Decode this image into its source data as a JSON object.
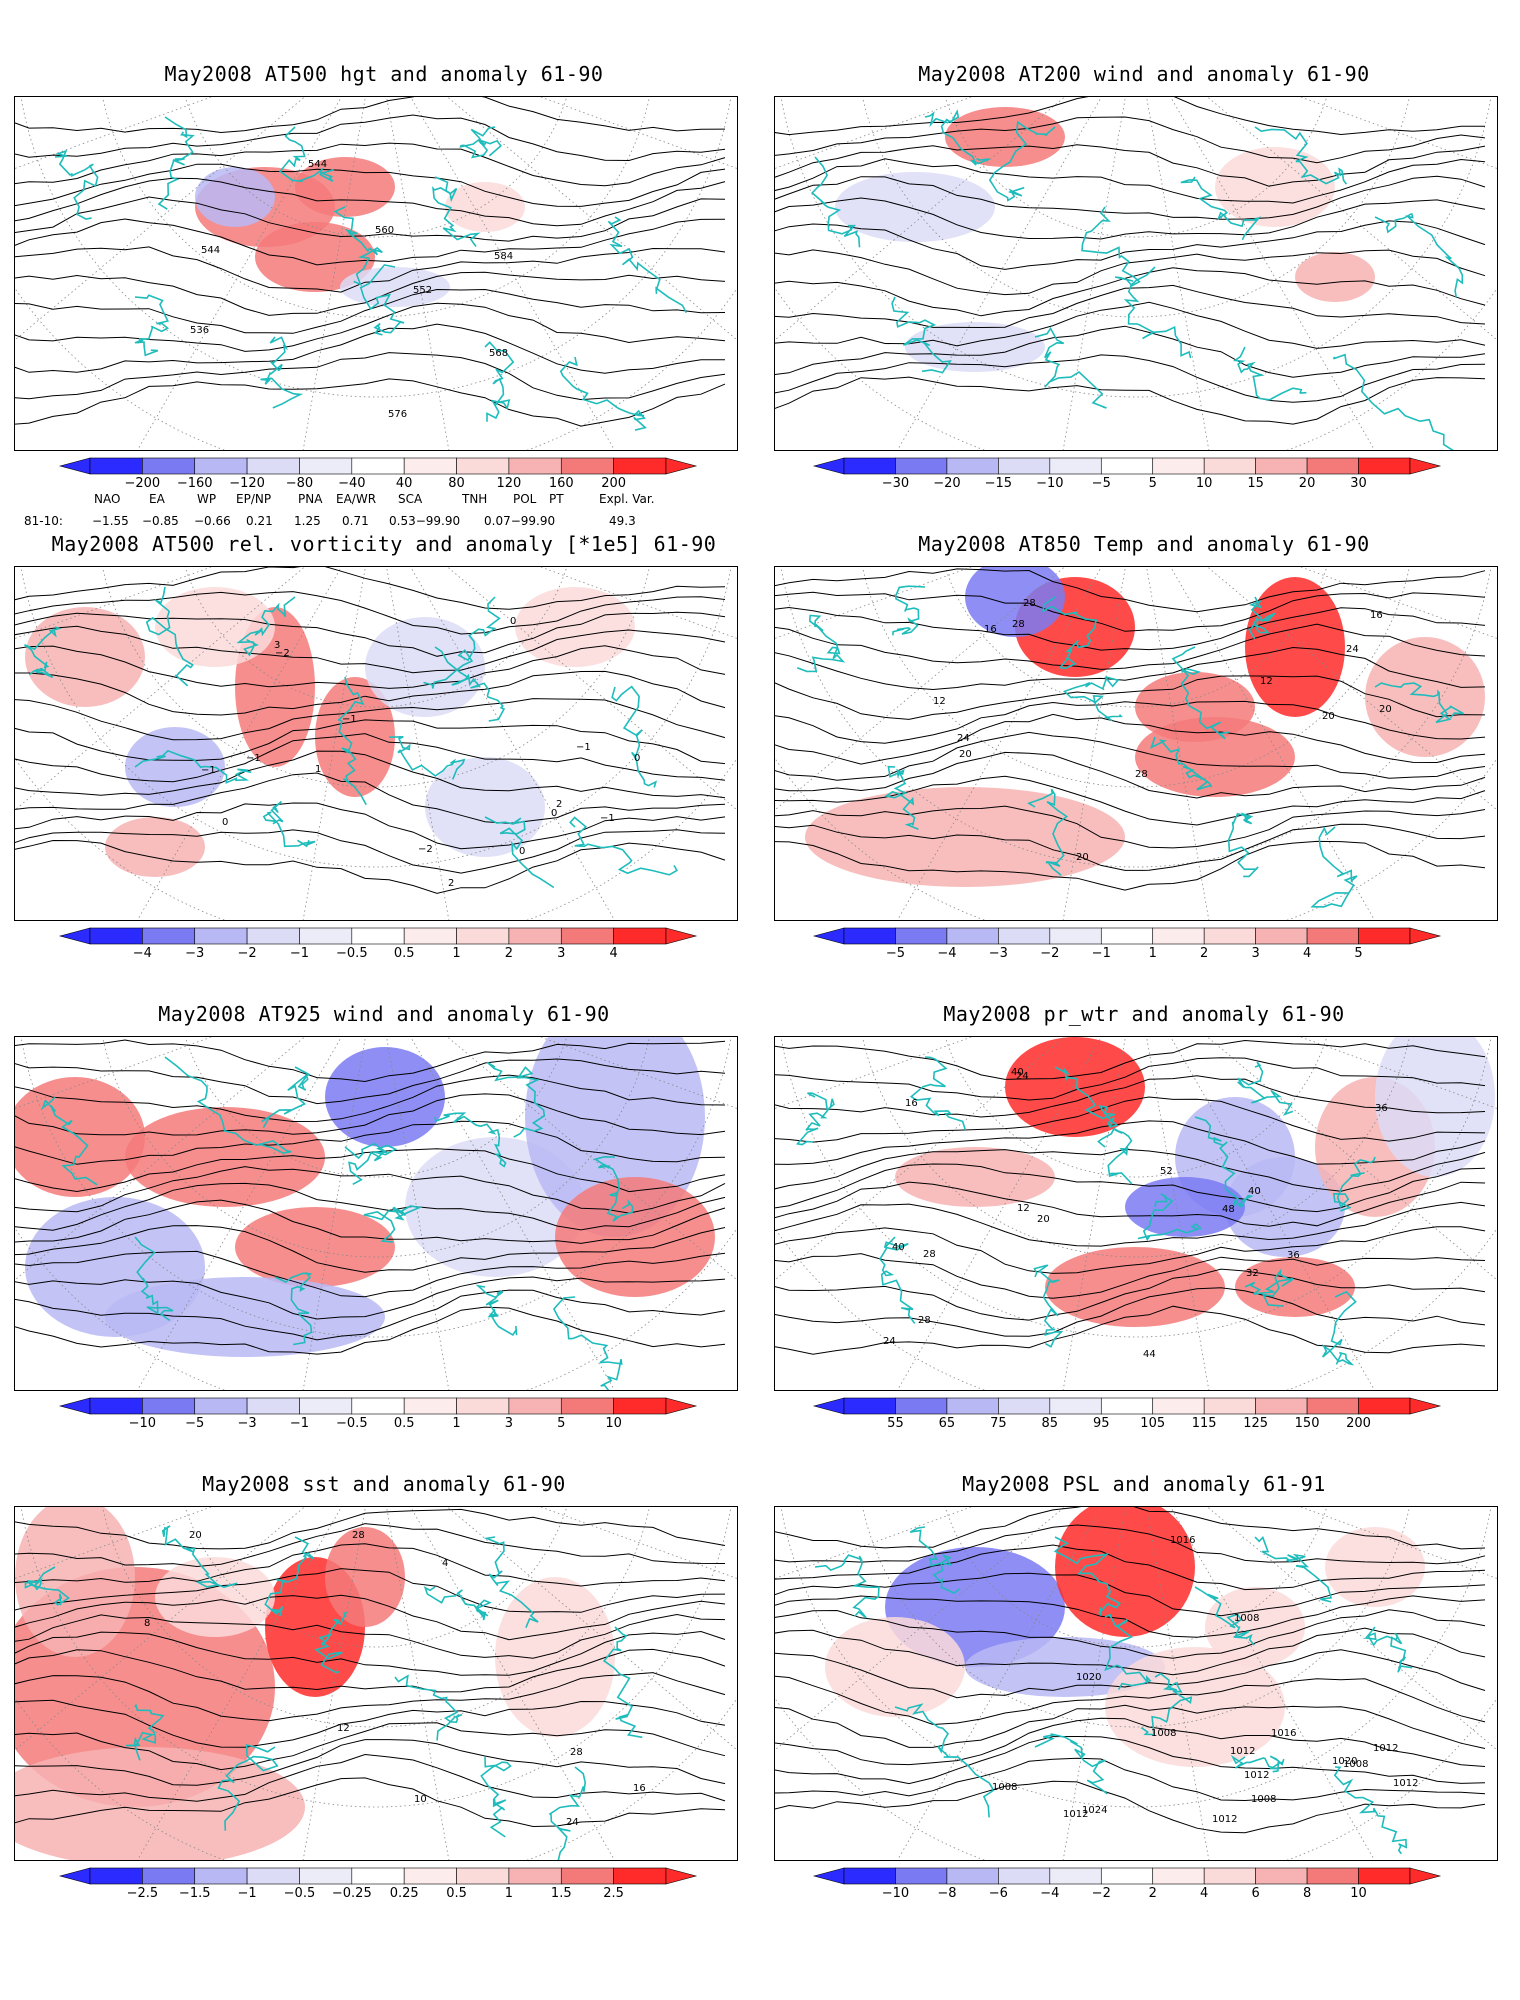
{
  "colors": {
    "contour": "#000000",
    "coast": "#1fbcbc",
    "neg_strong": "#2b2bff",
    "neg_mid": "#7a7af2",
    "neg_light": "#b8b8f5",
    "neg_faint": "#dcdcf7",
    "pos_faint": "#fbdada",
    "pos_light": "#f7b3b3",
    "pos_mid": "#f47a7a",
    "pos_strong": "#ff2a2a"
  },
  "panels": [
    {
      "title": "May2008 AT500 hgt and anomaly 61-90",
      "colorbar_ticks": [
        "−200",
        "−160",
        "−120",
        "−80",
        "−40",
        "40",
        "80",
        "120",
        "160",
        "200"
      ],
      "contour_labels": [
        "544",
        "536",
        "544",
        "552",
        "560",
        "568",
        "576",
        "584"
      ]
    },
    {
      "title": "May2008 AT200 wind and anomaly 61-90",
      "colorbar_ticks": [
        "−30",
        "−20",
        "−15",
        "−10",
        "−5",
        "5",
        "10",
        "15",
        "20",
        "30"
      ],
      "contour_labels": []
    },
    {
      "title": "May2008 AT500 rel. vorticity and anomaly [*1e5] 61-90",
      "colorbar_ticks": [
        "−4",
        "−3",
        "−2",
        "−1",
        "−0.5",
        "0.5",
        "1",
        "2",
        "3",
        "4"
      ],
      "contour_labels": [
        "0",
        "3",
        "2",
        "−1",
        "−2",
        "−1",
        "2",
        "0",
        "−1",
        "1",
        "0",
        "−1",
        "0",
        "−1",
        "−2",
        "0"
      ]
    },
    {
      "title": "May2008 AT850 Temp and anomaly 61-90",
      "colorbar_ticks": [
        "−5",
        "−4",
        "−3",
        "−2",
        "−1",
        "1",
        "2",
        "3",
        "4",
        "5"
      ],
      "contour_labels": [
        "16",
        "20",
        "12",
        "28",
        "16",
        "20",
        "24",
        "28",
        "12",
        "28",
        "24",
        "20",
        "20"
      ]
    },
    {
      "title": "May2008 AT925 wind and anomaly 61-90",
      "colorbar_ticks": [
        "−10",
        "−5",
        "−3",
        "−1",
        "−0.5",
        "0.5",
        "1",
        "3",
        "5",
        "10"
      ],
      "contour_labels": []
    },
    {
      "title": "May2008 pr_wtr and anomaly 61-90",
      "colorbar_ticks": [
        "55",
        "65",
        "75",
        "85",
        "95",
        "105",
        "115",
        "125",
        "150",
        "200"
      ],
      "contour_labels": [
        "40",
        "52",
        "36",
        "28",
        "24",
        "16",
        "12",
        "20",
        "24",
        "28",
        "40",
        "32",
        "36",
        "44",
        "48",
        "40"
      ]
    },
    {
      "title": "May2008 sst and anomaly 61-90",
      "colorbar_ticks": [
        "−2.5",
        "−1.5",
        "−1",
        "−0.5",
        "−0.25",
        "0.25",
        "0.5",
        "1",
        "1.5",
        "2.5"
      ],
      "contour_labels": [
        "28",
        "4",
        "8",
        "12",
        "16",
        "20",
        "24",
        "28",
        "10"
      ]
    },
    {
      "title": "May2008 PSL and anomaly 61-91",
      "colorbar_ticks": [
        "−10",
        "−8",
        "−6",
        "−4",
        "−2",
        "2",
        "4",
        "6",
        "8",
        "10"
      ],
      "contour_labels": [
        "1012",
        "1012",
        "1024",
        "1016",
        "1008",
        "1008",
        "1020",
        "1012",
        "1020",
        "1012",
        "1008",
        "1016",
        "1012",
        "1008",
        "1008",
        "1012"
      ]
    }
  ],
  "teleconnections": {
    "headers": [
      "NAO",
      "EA",
      "WP",
      "EP/NP",
      "PNA",
      "EA/WR",
      "SCA",
      "TNH",
      "POL",
      "PT",
      "Expl. Var."
    ],
    "row_label": "81-10:",
    "values": [
      "−1.55",
      "−0.85",
      "−0.66",
      "0.21",
      "1.25",
      "0.71",
      "0.53−99.90",
      "0.07−99.90",
      "49.3"
    ]
  }
}
